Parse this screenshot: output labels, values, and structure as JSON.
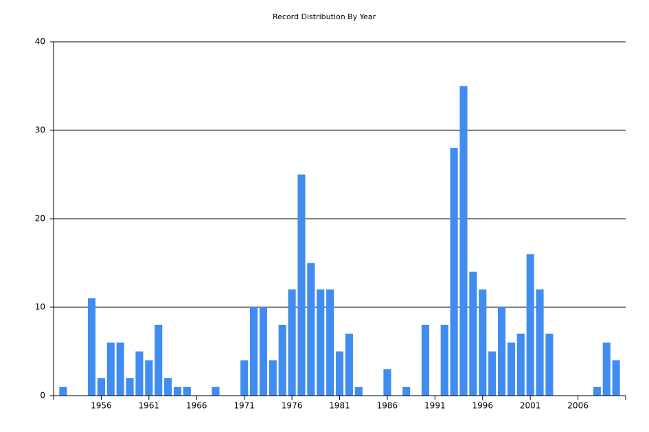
{
  "chart_data": {
    "type": "bar",
    "title": "Record Distribution By Year",
    "x": [
      1952,
      1955,
      1956,
      1957,
      1958,
      1959,
      1960,
      1961,
      1962,
      1963,
      1964,
      1965,
      1968,
      1971,
      1972,
      1973,
      1974,
      1975,
      1976,
      1977,
      1978,
      1979,
      1980,
      1981,
      1982,
      1983,
      1986,
      1988,
      1990,
      1992,
      1993,
      1994,
      1995,
      1996,
      1997,
      1998,
      1999,
      2000,
      2001,
      2002,
      2003,
      2008,
      2009,
      2010
    ],
    "values": [
      1,
      11,
      2,
      6,
      6,
      2,
      5,
      4,
      8,
      2,
      1,
      1,
      1,
      4,
      10,
      10,
      4,
      8,
      12,
      25,
      15,
      12,
      12,
      5,
      7,
      1,
      3,
      1,
      8,
      8,
      28,
      35,
      14,
      12,
      5,
      10,
      6,
      7,
      16,
      12,
      7,
      1,
      6,
      4
    ],
    "color": "#418cf0",
    "xlim": [
      1951,
      2011
    ],
    "xticks": [
      1956,
      1961,
      1966,
      1971,
      1976,
      1981,
      1986,
      1991,
      1996,
      2001,
      2006
    ],
    "ylim": [
      0,
      40
    ],
    "yticks": [
      0,
      10,
      20,
      30,
      40
    ],
    "grid": true
  }
}
